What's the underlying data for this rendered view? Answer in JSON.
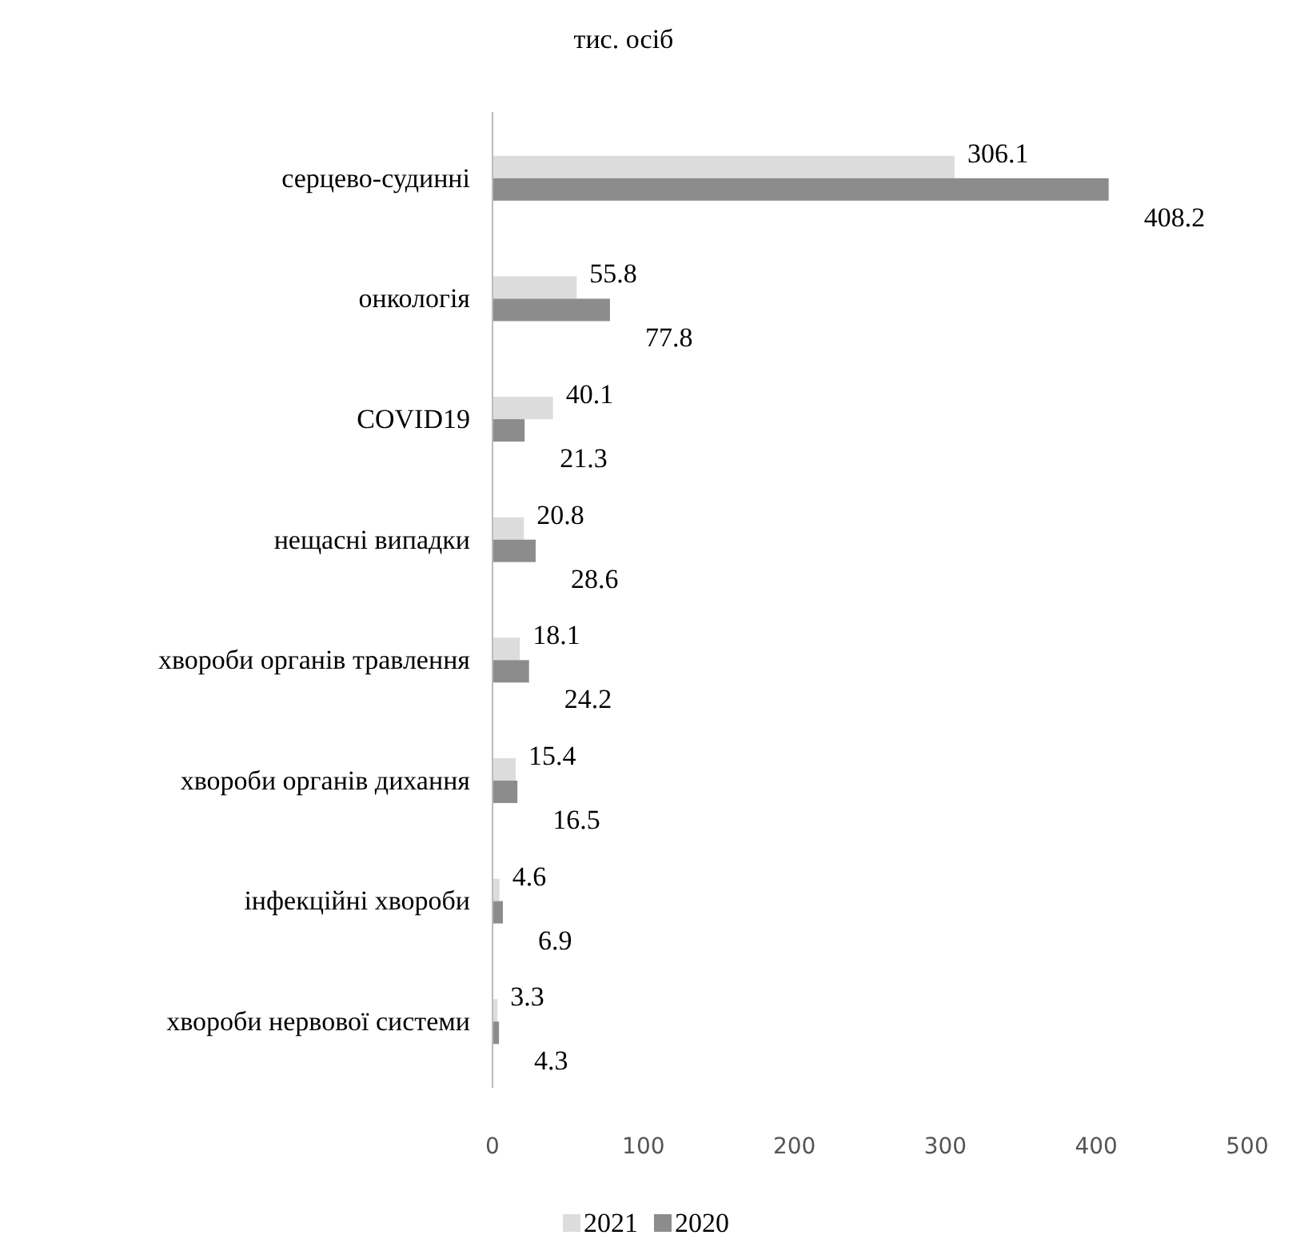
{
  "chart_data": {
    "type": "bar",
    "orientation": "horizontal",
    "title": "тис. осіб",
    "categories": [
      "серцево-судинні",
      "онкологія",
      "COVID19",
      "нещасні випадки",
      "хвороби органів травлення",
      "хвороби органів дихання",
      "інфекційні хвороби",
      "хвороби нервової системи"
    ],
    "series": [
      {
        "name": "2021",
        "color": "#dcdcdc",
        "values": [
          306.1,
          55.8,
          40.1,
          20.8,
          18.1,
          15.4,
          4.6,
          3.3
        ]
      },
      {
        "name": "2020",
        "color": "#8c8c8c",
        "values": [
          408.2,
          77.8,
          21.3,
          28.6,
          24.2,
          16.5,
          6.9,
          4.3
        ]
      }
    ],
    "xlim": [
      0,
      500
    ],
    "xticks": [
      0,
      100,
      200,
      300,
      400,
      500
    ],
    "data_labels": true,
    "legend": "bottom",
    "grid": false
  }
}
